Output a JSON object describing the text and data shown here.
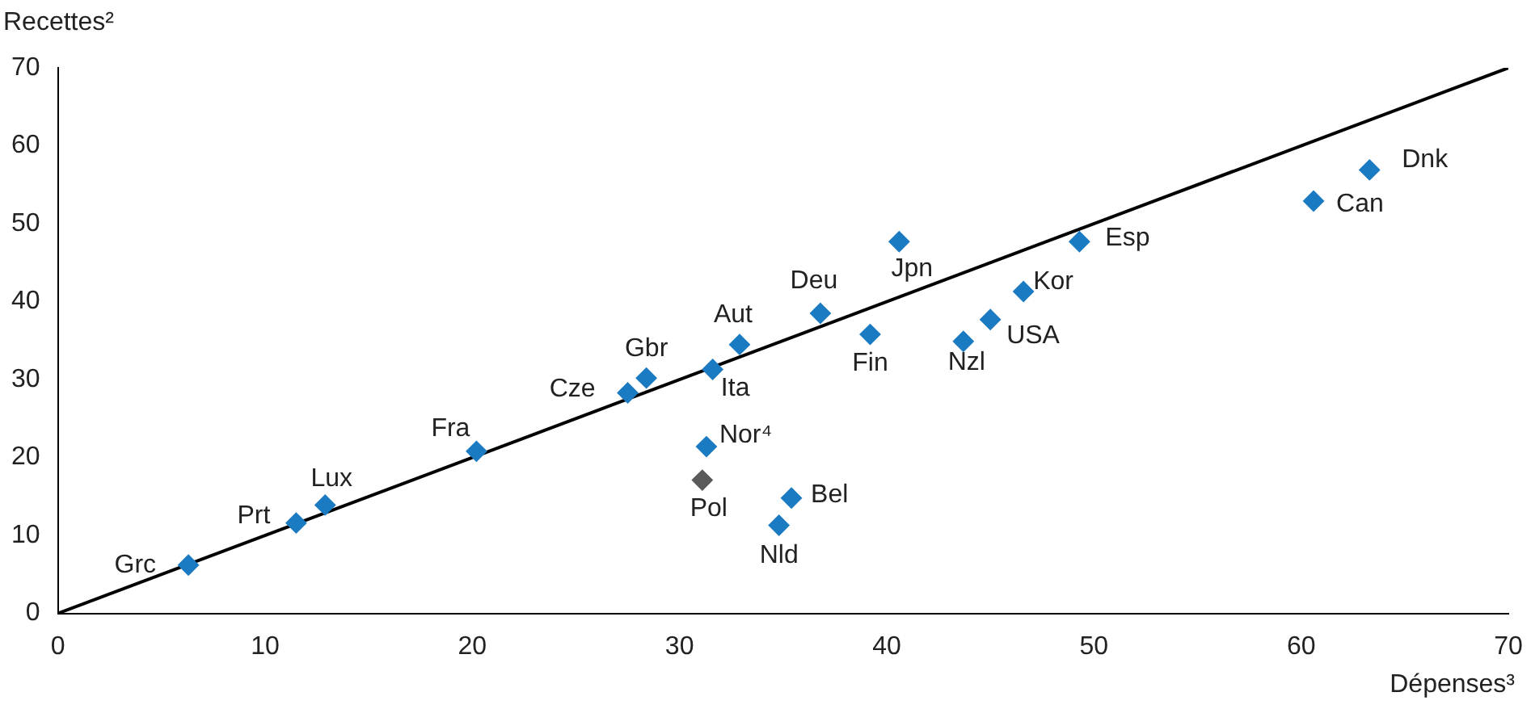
{
  "chart_data": {
    "type": "scatter",
    "xlabel": "Dépenses³",
    "ylabel": "Recettes²",
    "xlim": [
      0,
      70
    ],
    "ylim": [
      0,
      70
    ],
    "xticks": [
      0,
      10,
      20,
      30,
      40,
      50,
      60,
      70
    ],
    "yticks": [
      0,
      10,
      20,
      30,
      40,
      50,
      60,
      70
    ],
    "grid": false,
    "legend": false,
    "marker": "diamond",
    "series": [
      {
        "type": "line",
        "color": "#000000",
        "x": [
          0,
          70
        ],
        "values": [
          0,
          70
        ],
        "marker": "none"
      },
      {
        "x": [
          6.3,
          11.5,
          12.9,
          20.2,
          27.5,
          28.4,
          31.6,
          32.9,
          31.3,
          31.1,
          35.4,
          34.8,
          36.8,
          39.2,
          40.6,
          43.7,
          45.0,
          46.6,
          49.3,
          60.6,
          63.3
        ],
        "values": [
          6.2,
          11.6,
          13.9,
          20.8,
          28.3,
          30.2,
          31.3,
          34.5,
          21.4,
          17.1,
          14.8,
          11.3,
          38.5,
          35.8,
          47.7,
          34.9,
          37.7,
          41.3,
          47.7,
          52.9,
          56.9
        ],
        "colors": [
          "#1b7bc2",
          "#1b7bc2",
          "#1b7bc2",
          "#1b7bc2",
          "#1b7bc2",
          "#1b7bc2",
          "#1b7bc2",
          "#1b7bc2",
          "#1b7bc2",
          "#5a5a5a",
          "#1b7bc2",
          "#1b7bc2",
          "#1b7bc2",
          "#1b7bc2",
          "#1b7bc2",
          "#1b7bc2",
          "#1b7bc2",
          "#1b7bc2",
          "#1b7bc2",
          "#1b7bc2",
          "#1b7bc2"
        ]
      }
    ],
    "annotations": [
      {
        "text": "Grc",
        "x": 6.3,
        "y": 6.2
      },
      {
        "text": "Prt",
        "x": 11.5,
        "y": 11.6
      },
      {
        "text": "Lux",
        "x": 12.9,
        "y": 13.9
      },
      {
        "text": "Fra",
        "x": 20.2,
        "y": 20.8
      },
      {
        "text": "Cze",
        "x": 27.5,
        "y": 28.3
      },
      {
        "text": "Gbr",
        "x": 28.4,
        "y": 30.2
      },
      {
        "text": "Ita",
        "x": 31.6,
        "y": 31.3
      },
      {
        "text": "Aut",
        "x": 32.9,
        "y": 34.5
      },
      {
        "text": "Nor⁴",
        "x": 31.3,
        "y": 21.4
      },
      {
        "text": "Pol",
        "x": 31.1,
        "y": 17.1
      },
      {
        "text": "Bel",
        "x": 35.4,
        "y": 14.8
      },
      {
        "text": "Nld",
        "x": 34.8,
        "y": 11.3
      },
      {
        "text": "Deu",
        "x": 36.8,
        "y": 38.5
      },
      {
        "text": "Fin",
        "x": 39.2,
        "y": 35.8
      },
      {
        "text": "Jpn",
        "x": 40.6,
        "y": 47.7
      },
      {
        "text": "Nzl",
        "x": 43.7,
        "y": 34.9
      },
      {
        "text": "USA",
        "x": 45.0,
        "y": 37.7
      },
      {
        "text": "Kor",
        "x": 46.6,
        "y": 41.3
      },
      {
        "text": "Esp",
        "x": 49.3,
        "y": 47.7
      },
      {
        "text": "Can",
        "x": 60.6,
        "y": 52.9
      },
      {
        "text": "Dnk",
        "x": 63.3,
        "y": 56.9
      }
    ]
  }
}
